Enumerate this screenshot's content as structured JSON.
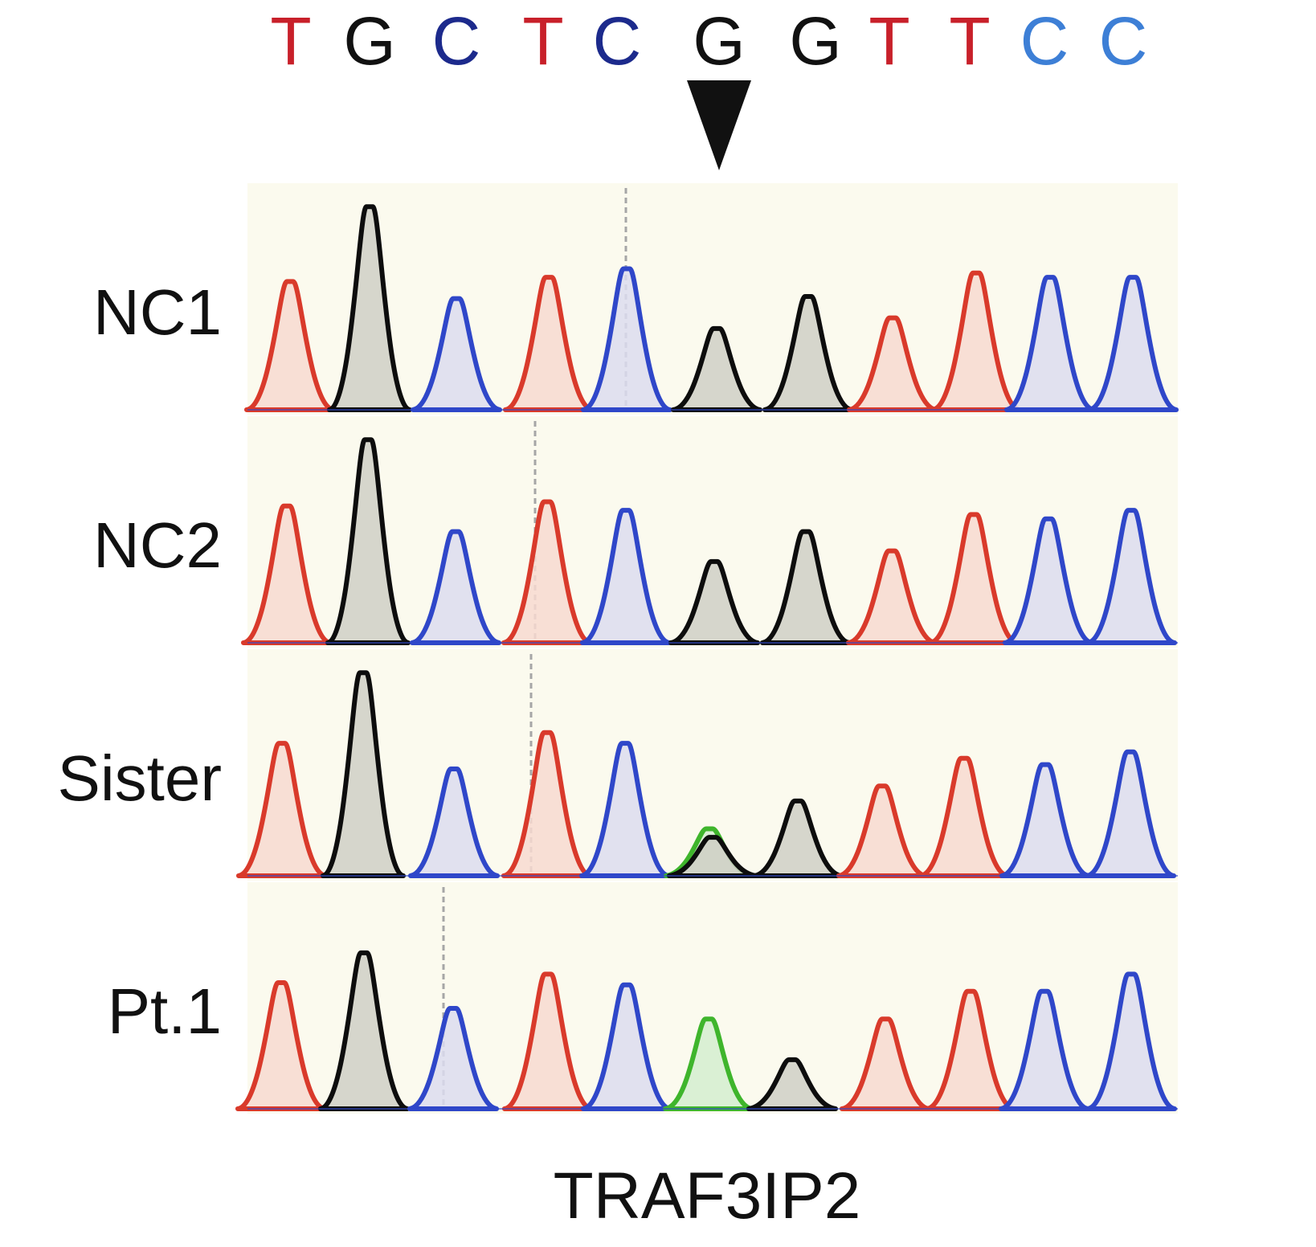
{
  "colors": {
    "T": "#c8202a",
    "G": "#111111",
    "C_dark": "#1c2a8c",
    "C_light": "#3d7fd6",
    "A": "#4aaa2e",
    "trace_T": "#d93a2b",
    "trace_G": "#0d0d0d",
    "trace_C": "#2f47c9",
    "trace_A": "#3fb52c",
    "fill_T": "#f7d9d0",
    "fill_G": "#cfcfc6",
    "fill_C": "#dcdcef",
    "fill_A": "#cfeccb",
    "panel_bg": "#fbfaee",
    "marker_line": "#a6a6a6"
  },
  "sequence": [
    {
      "base": "T",
      "color": "T"
    },
    {
      "base": "G",
      "color": "G"
    },
    {
      "base": "C",
      "color": "C_dark"
    },
    {
      "base": "T",
      "color": "T"
    },
    {
      "base": "C",
      "color": "C_dark"
    },
    {
      "base": "G",
      "color": "G"
    },
    {
      "base": "G",
      "color": "G"
    },
    {
      "base": "T",
      "color": "T"
    },
    {
      "base": "T",
      "color": "T"
    },
    {
      "base": "C",
      "color": "C_light"
    },
    {
      "base": "C",
      "color": "C_light"
    }
  ],
  "mutation": {
    "base": "A",
    "position": 5,
    "icon": "arrowhead-down-icon"
  },
  "tracks": [
    {
      "label": "NC1",
      "peaks": [
        {
          "b": "T",
          "h": 0.6
        },
        {
          "b": "G",
          "h": 0.95
        },
        {
          "b": "C",
          "h": 0.52
        },
        {
          "b": "T",
          "h": 0.62
        },
        {
          "b": "C",
          "h": 0.66
        },
        {
          "b": "G",
          "h": 0.38
        },
        {
          "b": "G",
          "h": 0.53
        },
        {
          "b": "T",
          "h": 0.43
        },
        {
          "b": "T",
          "h": 0.64
        },
        {
          "b": "C",
          "h": 0.62
        },
        {
          "b": "C",
          "h": 0.62
        }
      ]
    },
    {
      "label": "NC2",
      "peaks": [
        {
          "b": "T",
          "h": 0.64
        },
        {
          "b": "G",
          "h": 0.95
        },
        {
          "b": "C",
          "h": 0.52
        },
        {
          "b": "T",
          "h": 0.66
        },
        {
          "b": "C",
          "h": 0.62
        },
        {
          "b": "G",
          "h": 0.38
        },
        {
          "b": "G",
          "h": 0.52
        },
        {
          "b": "T",
          "h": 0.43
        },
        {
          "b": "T",
          "h": 0.6
        },
        {
          "b": "C",
          "h": 0.58
        },
        {
          "b": "C",
          "h": 0.62
        }
      ]
    },
    {
      "label": "Sister",
      "peaks": [
        {
          "b": "T",
          "h": 0.62
        },
        {
          "b": "G",
          "h": 0.95
        },
        {
          "b": "C",
          "h": 0.5
        },
        {
          "b": "T",
          "h": 0.67
        },
        {
          "b": "C",
          "h": 0.62
        },
        {
          "b": "A",
          "h": 0.22
        },
        {
          "b": "G",
          "h": 0.18
        },
        {
          "b": "G",
          "h": 0.35
        },
        {
          "b": "T",
          "h": 0.42
        },
        {
          "b": "T",
          "h": 0.55
        },
        {
          "b": "C",
          "h": 0.52
        },
        {
          "b": "C",
          "h": 0.58
        }
      ]
    },
    {
      "label": "Pt.1",
      "peaks": [
        {
          "b": "T",
          "h": 0.59
        },
        {
          "b": "G",
          "h": 0.73
        },
        {
          "b": "C",
          "h": 0.47
        },
        {
          "b": "T",
          "h": 0.63
        },
        {
          "b": "C",
          "h": 0.58
        },
        {
          "b": "A",
          "h": 0.42
        },
        {
          "b": "G",
          "h": 0.23
        },
        {
          "b": "T",
          "h": 0.42
        },
        {
          "b": "T",
          "h": 0.55
        },
        {
          "b": "C",
          "h": 0.55
        },
        {
          "b": "C",
          "h": 0.63
        }
      ]
    }
  ],
  "gene_label": "TRAF3IP2"
}
